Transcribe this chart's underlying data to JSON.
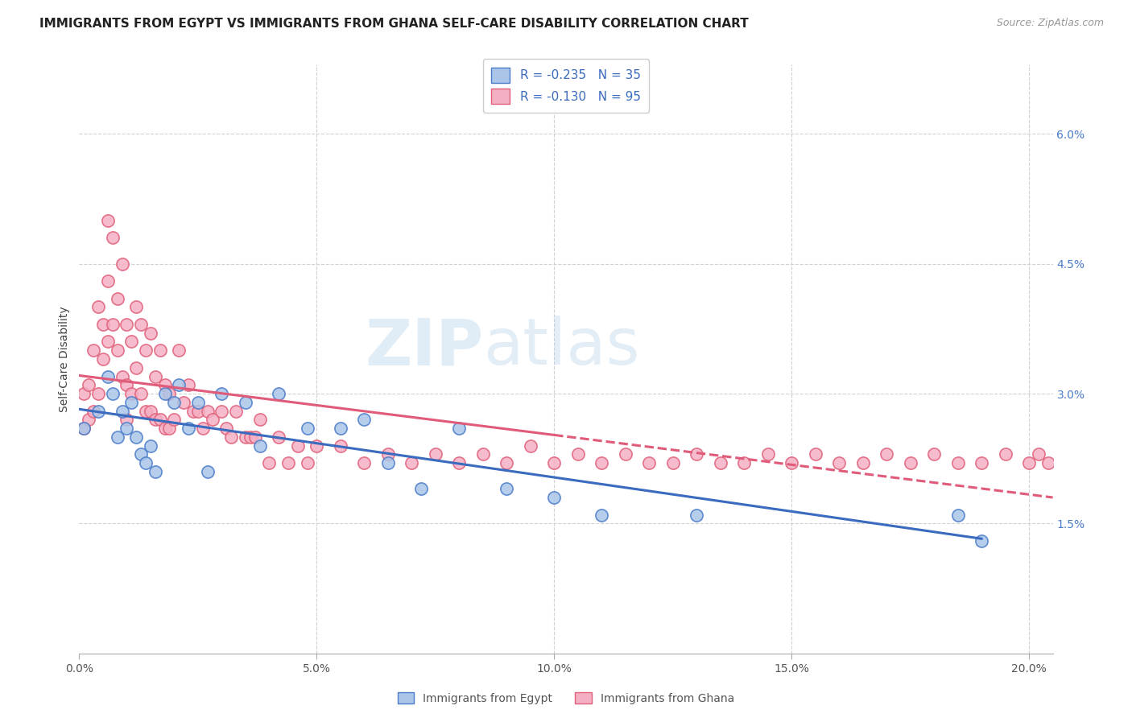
{
  "title": "IMMIGRANTS FROM EGYPT VS IMMIGRANTS FROM GHANA SELF-CARE DISABILITY CORRELATION CHART",
  "source": "Source: ZipAtlas.com",
  "ylabel": "Self-Care Disability",
  "xlim": [
    0.0,
    0.205
  ],
  "ylim": [
    0.0,
    0.068
  ],
  "ytick_vals": [
    0.015,
    0.03,
    0.045,
    0.06
  ],
  "ytick_labels": [
    "1.5%",
    "3.0%",
    "4.5%",
    "6.0%"
  ],
  "xtick_vals": [
    0.0,
    0.05,
    0.1,
    0.15,
    0.2
  ],
  "xtick_labels": [
    "0.0%",
    "5.0%",
    "10.0%",
    "15.0%",
    "20.0%"
  ],
  "egypt_color": "#aac5e8",
  "ghana_color": "#f5afc3",
  "egypt_edge_color": "#4a7cc9",
  "ghana_edge_color": "#e0607a",
  "egypt_line_color": "#3a6bbf",
  "ghana_line_color": "#e05a7a",
  "egypt_R": -0.235,
  "egypt_N": 35,
  "ghana_R": -0.13,
  "ghana_N": 95,
  "watermark_zip": "ZIP",
  "watermark_atlas": "atlas",
  "background_color": "#ffffff",
  "grid_color": "#d0d0d0",
  "egypt_x": [
    0.001,
    0.004,
    0.006,
    0.007,
    0.008,
    0.009,
    0.01,
    0.011,
    0.012,
    0.013,
    0.014,
    0.015,
    0.016,
    0.018,
    0.02,
    0.021,
    0.023,
    0.025,
    0.027,
    0.03,
    0.035,
    0.038,
    0.042,
    0.048,
    0.055,
    0.06,
    0.065,
    0.072,
    0.08,
    0.09,
    0.1,
    0.11,
    0.13,
    0.185,
    0.19
  ],
  "egypt_y": [
    0.026,
    0.028,
    0.032,
    0.03,
    0.025,
    0.028,
    0.026,
    0.029,
    0.025,
    0.023,
    0.022,
    0.024,
    0.021,
    0.03,
    0.029,
    0.031,
    0.026,
    0.029,
    0.021,
    0.03,
    0.029,
    0.024,
    0.03,
    0.026,
    0.026,
    0.027,
    0.022,
    0.019,
    0.026,
    0.019,
    0.018,
    0.016,
    0.016,
    0.016,
    0.013
  ],
  "ghana_x": [
    0.001,
    0.001,
    0.002,
    0.002,
    0.003,
    0.003,
    0.004,
    0.004,
    0.005,
    0.005,
    0.006,
    0.006,
    0.006,
    0.007,
    0.007,
    0.008,
    0.008,
    0.009,
    0.009,
    0.01,
    0.01,
    0.01,
    0.011,
    0.011,
    0.012,
    0.012,
    0.013,
    0.013,
    0.014,
    0.014,
    0.015,
    0.015,
    0.016,
    0.016,
    0.017,
    0.017,
    0.018,
    0.018,
    0.019,
    0.019,
    0.02,
    0.021,
    0.022,
    0.023,
    0.024,
    0.025,
    0.026,
    0.027,
    0.028,
    0.03,
    0.031,
    0.032,
    0.033,
    0.035,
    0.036,
    0.037,
    0.038,
    0.04,
    0.042,
    0.044,
    0.046,
    0.048,
    0.05,
    0.055,
    0.06,
    0.065,
    0.07,
    0.075,
    0.08,
    0.085,
    0.09,
    0.095,
    0.1,
    0.105,
    0.11,
    0.115,
    0.12,
    0.125,
    0.13,
    0.135,
    0.14,
    0.145,
    0.15,
    0.155,
    0.16,
    0.165,
    0.17,
    0.175,
    0.18,
    0.185,
    0.19,
    0.195,
    0.2,
    0.202,
    0.204
  ],
  "ghana_y": [
    0.03,
    0.026,
    0.031,
    0.027,
    0.035,
    0.028,
    0.04,
    0.03,
    0.038,
    0.034,
    0.043,
    0.05,
    0.036,
    0.048,
    0.038,
    0.041,
    0.035,
    0.045,
    0.032,
    0.038,
    0.031,
    0.027,
    0.036,
    0.03,
    0.04,
    0.033,
    0.038,
    0.03,
    0.035,
    0.028,
    0.037,
    0.028,
    0.032,
    0.027,
    0.035,
    0.027,
    0.031,
    0.026,
    0.03,
    0.026,
    0.027,
    0.035,
    0.029,
    0.031,
    0.028,
    0.028,
    0.026,
    0.028,
    0.027,
    0.028,
    0.026,
    0.025,
    0.028,
    0.025,
    0.025,
    0.025,
    0.027,
    0.022,
    0.025,
    0.022,
    0.024,
    0.022,
    0.024,
    0.024,
    0.022,
    0.023,
    0.022,
    0.023,
    0.022,
    0.023,
    0.022,
    0.024,
    0.022,
    0.023,
    0.022,
    0.023,
    0.022,
    0.022,
    0.023,
    0.022,
    0.022,
    0.023,
    0.022,
    0.023,
    0.022,
    0.022,
    0.023,
    0.022,
    0.023,
    0.022,
    0.022,
    0.023,
    0.022,
    0.023,
    0.022
  ]
}
